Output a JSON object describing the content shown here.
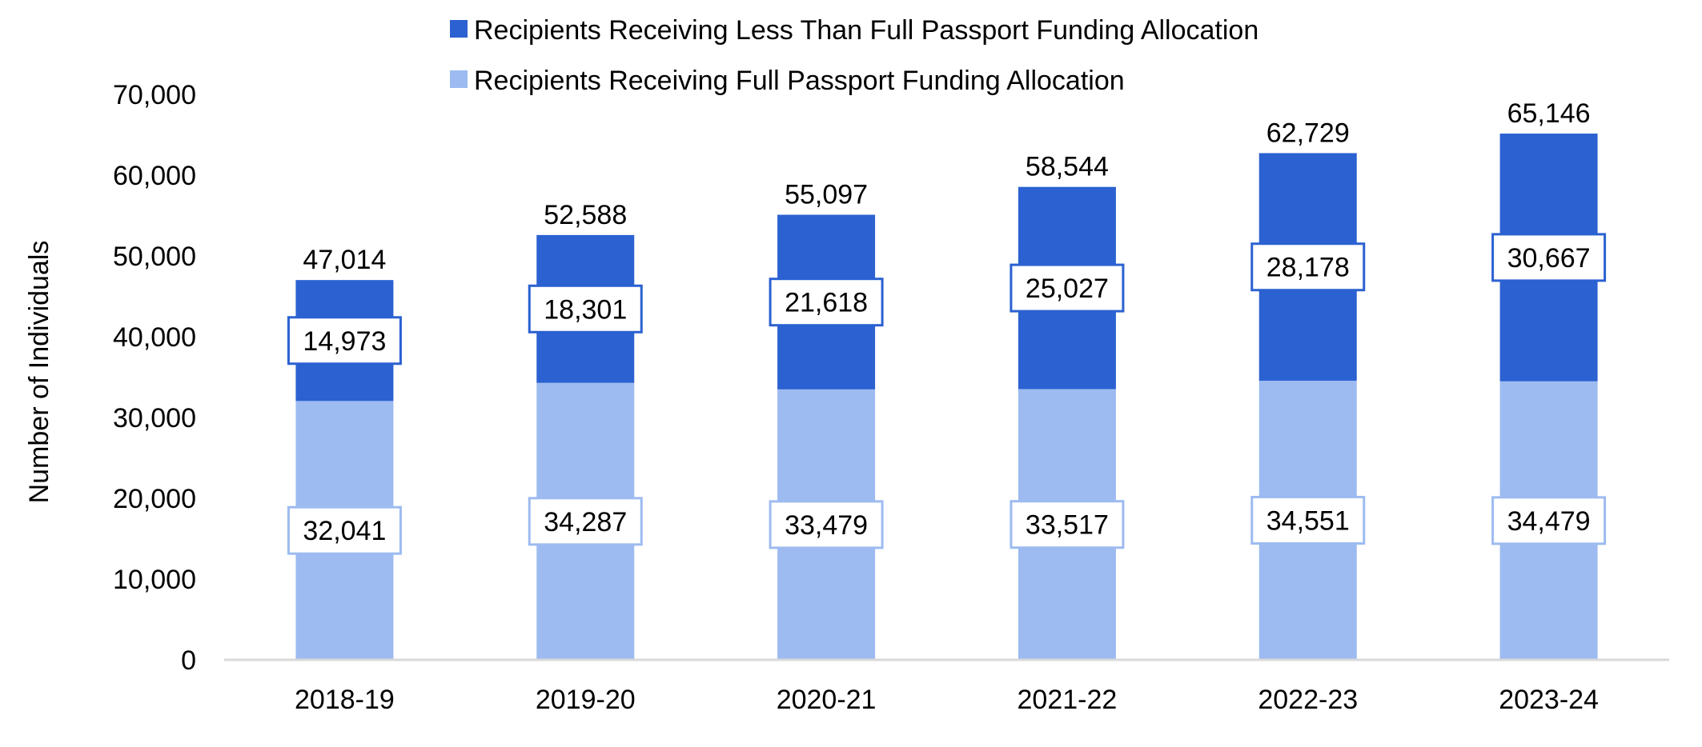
{
  "chart_data": {
    "type": "bar",
    "stacked": true,
    "title": "",
    "xlabel": "",
    "ylabel": "Number of Individuals",
    "ylim": [
      0,
      70000
    ],
    "yticks": [
      0,
      10000,
      20000,
      30000,
      40000,
      50000,
      60000,
      70000
    ],
    "ytick_labels": [
      "0",
      "10,000",
      "20,000",
      "30,000",
      "40,000",
      "50,000",
      "60,000",
      "70,000"
    ],
    "grid": false,
    "legend_position": "top",
    "categories": [
      "2018-19",
      "2019-20",
      "2020-21",
      "2021-22",
      "2022-23",
      "2023-24"
    ],
    "series": [
      {
        "name": "Recipients Receiving Full Passport Funding Allocation",
        "color": "#9dbbf0",
        "values": [
          32041,
          34287,
          33479,
          33517,
          34551,
          34479
        ],
        "labels": [
          "32,041",
          "34,287",
          "33,479",
          "33,517",
          "34,551",
          "34,479"
        ]
      },
      {
        "name": "Recipients Receiving Less Than Full Passport Funding Allocation",
        "color": "#2b61d1",
        "values": [
          14973,
          18301,
          21618,
          25027,
          28178,
          30667
        ],
        "labels": [
          "14,973",
          "18,301",
          "21,618",
          "25,027",
          "28,178",
          "30,667"
        ]
      }
    ],
    "totals": [
      47014,
      52588,
      55097,
      58544,
      62729,
      65146
    ],
    "total_labels": [
      "47,014",
      "52,588",
      "55,097",
      "58,544",
      "62,729",
      "65,146"
    ],
    "legend_order": [
      1,
      0
    ]
  }
}
